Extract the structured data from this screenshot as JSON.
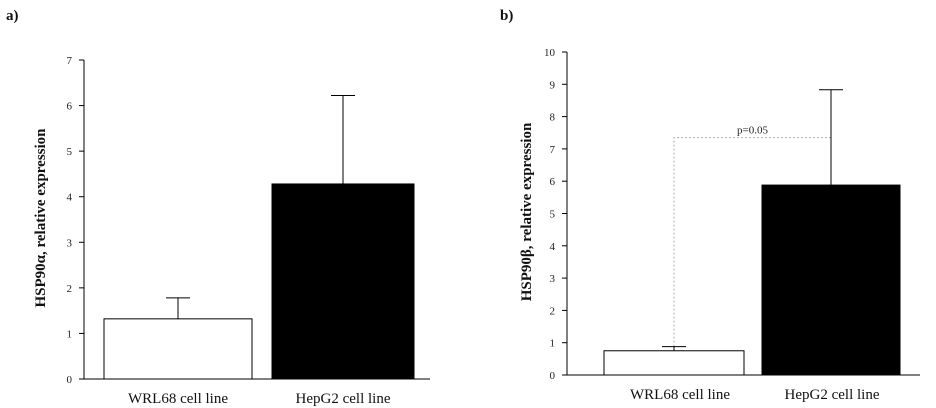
{
  "chart_data": [
    {
      "type": "bar",
      "panel_label": "a)",
      "categories": [
        "WRL68 cell line",
        "HepG2 cell line"
      ],
      "values": [
        1.32,
        4.28
      ],
      "error_upper": [
        1.78,
        6.22
      ],
      "ylabel": "HSP90α, relative expression",
      "ylim": [
        0,
        7
      ],
      "yticks": [
        "0",
        "1",
        "2",
        "3",
        "4",
        "5",
        "6",
        "7"
      ],
      "bar_colors": [
        "#ffffff",
        "#000000"
      ]
    },
    {
      "type": "bar",
      "panel_label": "b)",
      "categories": [
        "WRL68 cell line",
        "HepG2 cell line"
      ],
      "values": [
        0.75,
        5.88
      ],
      "error_upper": [
        0.88,
        8.83
      ],
      "ylabel": "HSP90β, relative expression",
      "ylim": [
        0,
        10
      ],
      "yticks": [
        "0",
        "1",
        "2",
        "3",
        "4",
        "5",
        "6",
        "7",
        "8",
        "9",
        "10"
      ],
      "bar_colors": [
        "#ffffff",
        "#000000"
      ],
      "annotation": "p=0.05",
      "annotation_y": 7.35
    }
  ]
}
